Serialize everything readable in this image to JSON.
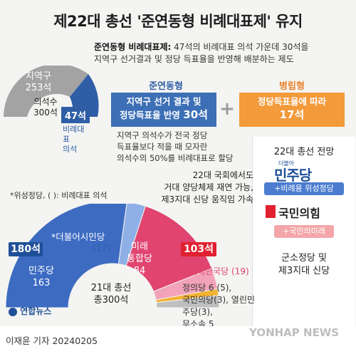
{
  "title": "제22대 총선 '준연동형 비례대표제' 유지",
  "definition": {
    "term": "준연동형 비례대표제:",
    "text_line1": " 47석의 비례대표 의석 가운데 30석을",
    "text_line2": "지역구 선거결과 및 정당 득표율을 반영해 배분하는 제도"
  },
  "seats_chart": {
    "district_label": "지역구",
    "district_seats": "253석",
    "total_label": "의석수",
    "total_seats": "300석",
    "pr_seats": "47석",
    "pr_label": "비례대표",
    "pr_label2": "의석"
  },
  "system": {
    "linked_title": "준연동형",
    "linked_line1": "지역구 선거 결과 및",
    "linked_line2a": "정당득표율 반영 ",
    "linked_line2b": "30석",
    "plus": "+",
    "parallel_title": "병립형",
    "parallel_line1": "정당득표율에 따라",
    "parallel_line2": "17석",
    "note_line1": "지역구 의석수가 전국 정당",
    "note_line2": "득표율보다 적을 때 모자란",
    "note_line3": "의석수의 50%를 비례대표로 할당"
  },
  "outlook": {
    "title": "22대 총선 전망",
    "party1_small": "더불어",
    "party1": "민주당",
    "party1_sub": "+비례용 위성정당",
    "party2": "국민의힘",
    "party2_sub": "+국민의미래",
    "minor_line1": "군소정당 및",
    "minor_line2": "제3지대 신당"
  },
  "forecast": {
    "line1": "22대 국회에서도",
    "line2": "거대 양당체제 재연 가능,",
    "line3": "제3지대 신당 움직임 가속"
  },
  "legend_note": "*위성정당, ( ): 비례대표 의석",
  "chart21": {
    "center_line1": "21대 총선",
    "center_line2": "총300석",
    "dem_total": "180석",
    "dem_name": "민주당",
    "dem_value": "163",
    "dem_sat": "*더불어시민당",
    "dem_sat_value": "(17)",
    "ppp_total": "103석",
    "ppp_name1": "미래",
    "ppp_name2": "통합당",
    "ppp_value": "84",
    "ppp_sat": "*미래한국당 (19)",
    "others_line1": "정의당 6 (5),",
    "others_line2": "국민의당(3), 열린민주당(3),",
    "others_line3": "무소속 5"
  },
  "chart_data": {
    "type": "pie",
    "title": "21대 총선 총300석",
    "slices": [
      {
        "name": "민주당",
        "value": 163,
        "color": "#3d6bc2"
      },
      {
        "name": "*더불어시민당",
        "value": 17,
        "color": "#8fb0e6"
      },
      {
        "name": "미래통합당",
        "value": 84,
        "color": "#e0446f"
      },
      {
        "name": "*미래한국당",
        "value": 19,
        "color": "#f3a3b9"
      },
      {
        "name": "정의당",
        "value": 6,
        "color": "#f2b233"
      },
      {
        "name": "기타",
        "value": 11,
        "color": "#bfbfbf"
      }
    ]
  },
  "footer": {
    "logo": "연합뉴스",
    "credit": "이재윤 기자  20240205",
    "watermark": "YONHAP NEWS"
  },
  "colors": {
    "blue": "#3c6fb5",
    "orange": "#f39a3b",
    "red": "#e12130",
    "pink": "#e0446f",
    "gray": "#9c9c9c"
  }
}
